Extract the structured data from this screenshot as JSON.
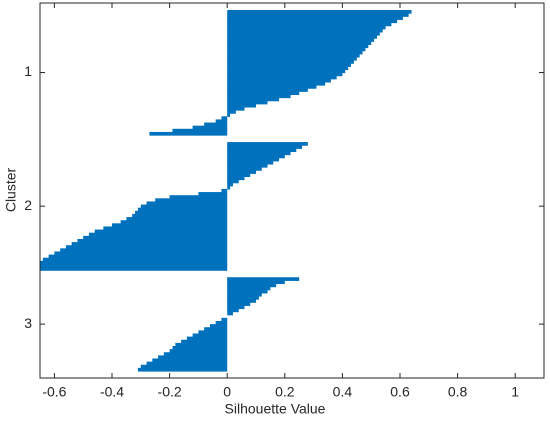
{
  "chart_data": {
    "type": "silhouette",
    "xlabel": "Silhouette Value",
    "ylabel": "Cluster",
    "color": "#0072bd",
    "xlim": [
      -0.65,
      1.1
    ],
    "xticks": [
      -0.6,
      -0.4,
      -0.2,
      0,
      0.2,
      0.4,
      0.6,
      0.8,
      1
    ],
    "clusters": [
      {
        "name": "1",
        "values": [
          0.64,
          0.63,
          0.61,
          0.59,
          0.57,
          0.55,
          0.54,
          0.53,
          0.52,
          0.51,
          0.5,
          0.49,
          0.48,
          0.47,
          0.46,
          0.45,
          0.44,
          0.43,
          0.42,
          0.41,
          0.4,
          0.38,
          0.36,
          0.34,
          0.31,
          0.28,
          0.25,
          0.22,
          0.18,
          0.14,
          0.1,
          0.06,
          0.03,
          0.01,
          -0.02,
          -0.04,
          -0.08,
          -0.12,
          -0.19,
          -0.27
        ]
      },
      {
        "name": "2",
        "values": [
          0.28,
          0.26,
          0.24,
          0.22,
          0.2,
          0.18,
          0.16,
          0.14,
          0.12,
          0.1,
          0.08,
          0.06,
          0.04,
          0.02,
          0.01,
          -0.02,
          -0.1,
          -0.2,
          -0.25,
          -0.28,
          -0.3,
          -0.31,
          -0.32,
          -0.33,
          -0.35,
          -0.37,
          -0.4,
          -0.43,
          -0.46,
          -0.48,
          -0.5,
          -0.52,
          -0.54,
          -0.56,
          -0.58,
          -0.6,
          -0.62,
          -0.64,
          -0.65,
          -0.65,
          -0.65
        ]
      },
      {
        "name": "3",
        "values": [
          0.25,
          0.2,
          0.17,
          0.15,
          0.14,
          0.12,
          0.11,
          0.1,
          0.08,
          0.06,
          0.04,
          0.02,
          0.0,
          -0.02,
          -0.04,
          -0.06,
          -0.08,
          -0.1,
          -0.12,
          -0.14,
          -0.16,
          -0.18,
          -0.19,
          -0.2,
          -0.22,
          -0.24,
          -0.26,
          -0.28,
          -0.3,
          -0.31
        ]
      }
    ]
  }
}
